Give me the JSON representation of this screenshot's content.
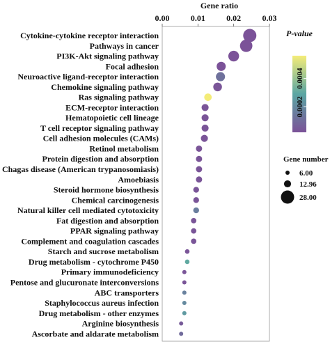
{
  "chart_data": {
    "type": "scatter",
    "xlabel": "Gene ratio",
    "xticks": [
      "0.00",
      "0.01",
      "0.02",
      "0.03"
    ],
    "xlim": [
      0,
      0.03
    ],
    "categories": [
      "Cytokine-cytokine receptor interaction",
      "Pathways in cancer",
      "PI3K-Akt signaling pathway",
      "Focal adhesion",
      "Neuroactive ligand-receptor interaction",
      "Chemokine signaling pathway",
      "Ras signaling pathway",
      "ECM-receptor interaction",
      "Hematopoietic cell lineage",
      "T cell receptor signaling pathway",
      "Cell adhesion molecules (CAMs)",
      "Retinol metabolism",
      "Protein digestion and absorption",
      "Chagas disease (American trypanosomiasis)",
      "Amoebiasis",
      "Steroid hormone biosynthesis",
      "Chemical carcinogenesis",
      "Natural killer cell mediated cytotoxicity",
      "Fat digestion and absorption",
      "PPAR signaling pathway",
      "Complement and coagulation cascades",
      "Starch and sucrose metabolism",
      "Drug metabolism - cytochrome P450",
      "Primary immunodeficiency",
      "Pentose and glucuronate interconversions",
      "ABC transporters",
      "Staphylococcus aureus infection",
      "Drug metabolism - other enzymes",
      "Arginine biosynthesis",
      "Ascorbate and aldarate metabolism"
    ],
    "gene_ratio": [
      0.0245,
      0.0235,
      0.02,
      0.0165,
      0.0163,
      0.0155,
      0.0128,
      0.012,
      0.012,
      0.012,
      0.0118,
      0.0103,
      0.0103,
      0.0103,
      0.0103,
      0.0095,
      0.0095,
      0.0095,
      0.0088,
      0.0088,
      0.0088,
      0.007,
      0.007,
      0.0062,
      0.0062,
      0.0062,
      0.0062,
      0.0062,
      0.0053,
      0.0053
    ],
    "gene_number": [
      28,
      26,
      22,
      18,
      18,
      17,
      14,
      13,
      13,
      13,
      13,
      11,
      11,
      11,
      11,
      10,
      10,
      10,
      9,
      9,
      9,
      7,
      7,
      6,
      6,
      6,
      6,
      6,
      6,
      6
    ],
    "p_value": [
      2e-05,
      2e-05,
      2e-05,
      2e-05,
      0.00012,
      3e-05,
      0.00056,
      3e-05,
      3e-05,
      3e-05,
      3e-05,
      3e-05,
      3e-05,
      3e-05,
      3e-05,
      3e-05,
      3e-05,
      0.00016,
      3e-05,
      3e-05,
      3e-05,
      3e-05,
      0.0003,
      3e-05,
      3e-05,
      0.00017,
      0.0002,
      0.00025,
      5e-05,
      0.0001
    ],
    "colorbar": {
      "title": "P-value",
      "ticks": [
        "0.0002",
        "0.0004"
      ],
      "tick_values": [
        0.0002,
        0.0004
      ],
      "range": [
        2e-05,
        0.00056
      ],
      "colors": [
        "#7b5298",
        "#5aa6a3",
        "#f4ec78"
      ]
    },
    "size_legend": {
      "title": "Gene number",
      "labels": [
        "6.00",
        "12.96",
        "28.00"
      ],
      "values": [
        6,
        12.96,
        28
      ]
    },
    "grid": false
  }
}
